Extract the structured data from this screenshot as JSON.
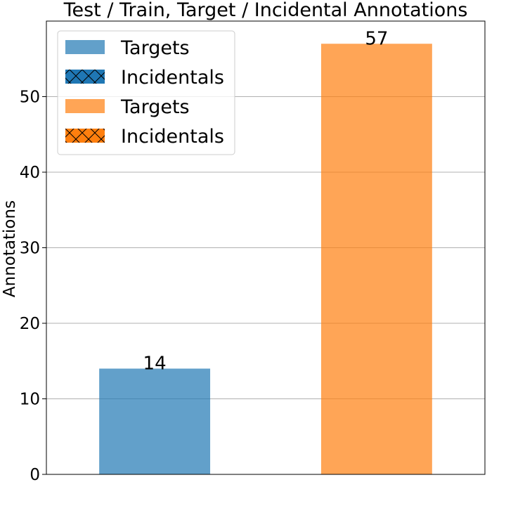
{
  "chart_data": {
    "type": "bar",
    "title": "Test / Train, Target / Incidental Annotations",
    "xlabel": "",
    "ylabel": "Annotations",
    "ylim": [
      0,
      60
    ],
    "yticks": [
      0,
      10,
      20,
      30,
      40,
      50
    ],
    "grid": "y",
    "legend_position": "top-left",
    "series": [
      {
        "name": "Targets",
        "values": [
          14,
          57
        ],
        "colors": [
          "#1f77b4",
          "#ff7f0e"
        ]
      },
      {
        "name": "Incidentals",
        "values": [
          0,
          0
        ],
        "colors": [
          "#1f77b4",
          "#ff7f0e"
        ]
      }
    ],
    "bar_labels": [
      "14",
      "57"
    ],
    "legend": [
      {
        "label": "Targets",
        "color": "#1f77b4",
        "hatch": false,
        "opacity": 0.7
      },
      {
        "label": "Incidentals",
        "color": "#1f77b4",
        "hatch": true,
        "opacity": 1
      },
      {
        "label": "Targets",
        "color": "#ff7f0e",
        "hatch": false,
        "opacity": 0.7
      },
      {
        "label": "Incidentals",
        "color": "#ff7f0e",
        "hatch": true,
        "opacity": 1
      }
    ]
  }
}
